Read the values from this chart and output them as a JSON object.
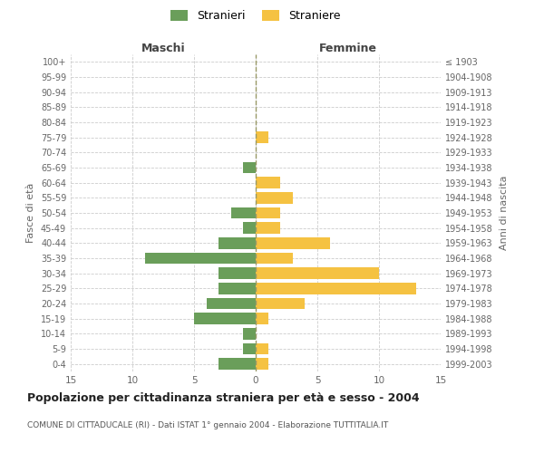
{
  "age_groups": [
    "0-4",
    "5-9",
    "10-14",
    "15-19",
    "20-24",
    "25-29",
    "30-34",
    "35-39",
    "40-44",
    "45-49",
    "50-54",
    "55-59",
    "60-64",
    "65-69",
    "70-74",
    "75-79",
    "80-84",
    "85-89",
    "90-94",
    "95-99",
    "100+"
  ],
  "birth_years": [
    "1999-2003",
    "1994-1998",
    "1989-1993",
    "1984-1988",
    "1979-1983",
    "1974-1978",
    "1969-1973",
    "1964-1968",
    "1959-1963",
    "1954-1958",
    "1949-1953",
    "1944-1948",
    "1939-1943",
    "1934-1938",
    "1929-1933",
    "1924-1928",
    "1919-1923",
    "1914-1918",
    "1909-1913",
    "1904-1908",
    "≤ 1903"
  ],
  "males": [
    3,
    1,
    1,
    5,
    4,
    3,
    3,
    9,
    3,
    1,
    2,
    0,
    0,
    1,
    0,
    0,
    0,
    0,
    0,
    0,
    0
  ],
  "females": [
    1,
    1,
    0,
    1,
    4,
    13,
    10,
    3,
    6,
    2,
    2,
    3,
    2,
    0,
    0,
    1,
    0,
    0,
    0,
    0,
    0
  ],
  "male_color": "#6a9e5a",
  "female_color": "#f5c242",
  "title": "Popolazione per cittadinanza straniera per età e sesso - 2004",
  "subtitle": "COMUNE DI CITTADUCALE (RI) - Dati ISTAT 1° gennaio 2004 - Elaborazione TUTTITALIA.IT",
  "xlabel_left": "Maschi",
  "xlabel_right": "Femmine",
  "ylabel_left": "Fasce di età",
  "ylabel_right": "Anni di nascita",
  "legend_male": "Stranieri",
  "legend_female": "Straniere",
  "xlim": 15,
  "background_color": "#ffffff",
  "grid_color": "#cccccc"
}
